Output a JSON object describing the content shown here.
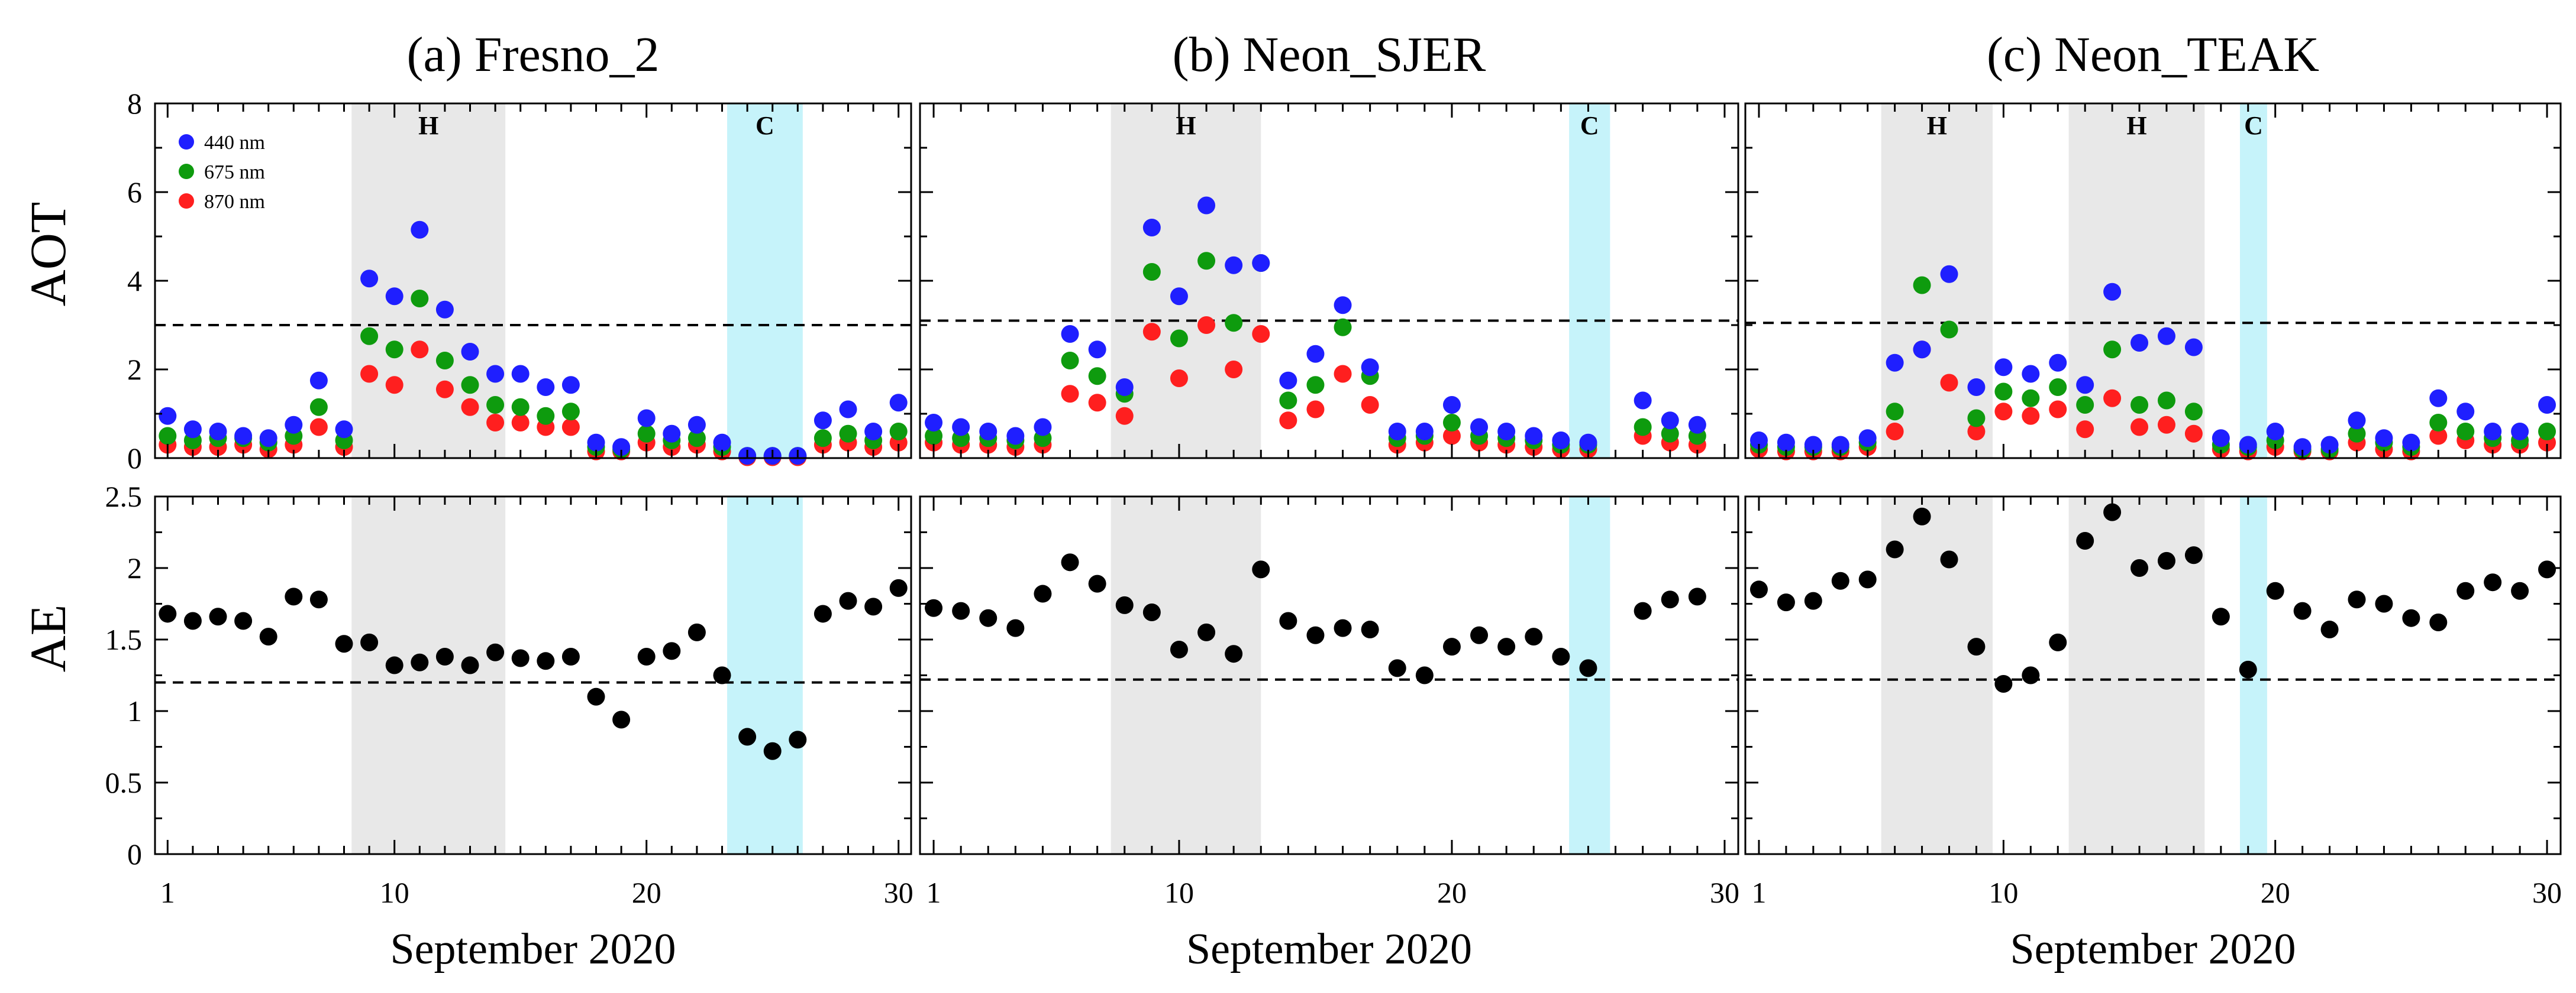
{
  "figure": {
    "ylabels": {
      "aot": "AOT",
      "ae": "AE"
    },
    "xlabel": "September 2020",
    "legend": [
      {
        "label": "440 nm",
        "color": "#1f1fff"
      },
      {
        "label": "675 nm",
        "color": "#0e9b0e"
      },
      {
        "label": "870 nm",
        "color": "#ff1f1f"
      }
    ],
    "colors": {
      "haze_band": "#e8e8e8",
      "clean_band": "#c6f3fa",
      "ae_marker": "#000000"
    },
    "aot_ylim": [
      0,
      8
    ],
    "aot_yticks": [
      0,
      2,
      4,
      6,
      8
    ],
    "ae_ylim": [
      0,
      2.5
    ],
    "ae_yticks": [
      0,
      0.5,
      1,
      1.5,
      2,
      2.5
    ],
    "ae_ytick_labels": [
      "0",
      "0.5",
      "1",
      "1.5",
      "2",
      "2.5"
    ],
    "xlim": [
      0.5,
      30.5
    ],
    "xticks": [
      1,
      10,
      20,
      30
    ]
  },
  "chart_data": [
    {
      "type": "scatter",
      "title": "(a) Fresno_2",
      "aot_threshold": 3.0,
      "ae_threshold": 1.2,
      "bands": [
        {
          "label": "H",
          "kind": "haze",
          "x0": 8.3,
          "x1": 14.4
        },
        {
          "label": "C",
          "kind": "clean",
          "x0": 23.2,
          "x1": 26.2
        }
      ],
      "days": [
        1,
        2,
        3,
        4,
        5,
        6,
        7,
        8,
        9,
        10,
        11,
        12,
        13,
        14,
        15,
        16,
        17,
        18,
        19,
        20,
        21,
        22,
        23,
        24,
        25,
        26,
        27,
        28,
        29,
        30
      ],
      "series": [
        {
          "name": "440 nm",
          "values": [
            0.95,
            0.65,
            0.6,
            0.5,
            0.45,
            0.75,
            1.75,
            0.65,
            4.05,
            3.65,
            5.15,
            3.35,
            2.4,
            1.9,
            1.9,
            1.6,
            1.65,
            0.35,
            0.25,
            0.9,
            0.55,
            0.75,
            0.35,
            0.05,
            0.05,
            0.05,
            0.85,
            1.1,
            0.6,
            1.25
          ]
        },
        {
          "name": "675 nm",
          "values": [
            0.5,
            0.4,
            0.45,
            0.45,
            0.35,
            0.5,
            1.15,
            0.4,
            2.75,
            2.45,
            3.6,
            2.2,
            1.65,
            1.2,
            1.15,
            0.95,
            1.05,
            0.25,
            0.2,
            0.55,
            0.4,
            0.45,
            0.25,
            0.05,
            0.05,
            0.05,
            0.45,
            0.55,
            0.4,
            0.6
          ]
        },
        {
          "name": "870 nm",
          "values": [
            0.3,
            0.25,
            0.25,
            0.3,
            0.2,
            0.3,
            0.7,
            0.25,
            1.9,
            1.65,
            2.45,
            1.55,
            1.15,
            0.8,
            0.8,
            0.7,
            0.7,
            0.15,
            0.15,
            0.35,
            0.25,
            0.3,
            0.15,
            0.02,
            0.02,
            0.02,
            0.3,
            0.35,
            0.25,
            0.35
          ]
        },
        {
          "name": "AE",
          "values": [
            1.68,
            1.63,
            1.66,
            1.63,
            1.52,
            1.8,
            1.78,
            1.47,
            1.48,
            1.32,
            1.34,
            1.38,
            1.32,
            1.41,
            1.37,
            1.35,
            1.38,
            1.1,
            0.94,
            1.38,
            1.42,
            1.55,
            1.25,
            0.82,
            0.72,
            0.8,
            1.68,
            1.77,
            1.73,
            1.86
          ]
        }
      ]
    },
    {
      "type": "scatter",
      "title": "(b) Neon_SJER",
      "aot_threshold": 3.1,
      "ae_threshold": 1.22,
      "bands": [
        {
          "label": "H",
          "kind": "haze",
          "x0": 7.5,
          "x1": 13.0
        },
        {
          "label": "C",
          "kind": "clean",
          "x0": 24.3,
          "x1": 25.8
        }
      ],
      "days": [
        1,
        2,
        3,
        4,
        5,
        6,
        7,
        8,
        9,
        10,
        11,
        12,
        13,
        14,
        15,
        16,
        17,
        18,
        19,
        20,
        21,
        22,
        23,
        24,
        25,
        27,
        28,
        29
      ],
      "series": [
        {
          "name": "440 nm",
          "values": [
            0.8,
            0.7,
            0.6,
            0.5,
            0.7,
            2.8,
            2.45,
            1.6,
            5.2,
            3.65,
            5.7,
            4.35,
            4.4,
            1.75,
            2.35,
            3.45,
            2.05,
            0.6,
            0.6,
            1.2,
            0.7,
            0.6,
            0.5,
            0.4,
            0.35,
            1.3,
            0.85,
            0.75
          ]
        },
        {
          "name": "675 nm",
          "values": [
            0.5,
            0.45,
            0.45,
            0.4,
            0.45,
            2.2,
            1.85,
            1.45,
            4.2,
            2.7,
            4.45,
            3.05,
            4.4,
            1.3,
            1.65,
            2.95,
            1.85,
            0.45,
            0.5,
            0.8,
            0.5,
            0.45,
            0.4,
            0.3,
            0.3,
            0.7,
            0.55,
            0.5
          ]
        },
        {
          "name": "870 nm",
          "values": [
            0.35,
            0.3,
            0.3,
            0.25,
            0.3,
            1.45,
            1.25,
            0.95,
            2.85,
            1.8,
            3.0,
            2.0,
            2.8,
            0.85,
            1.1,
            1.9,
            1.2,
            0.3,
            0.35,
            0.5,
            0.35,
            0.3,
            0.25,
            0.2,
            0.2,
            0.5,
            0.35,
            0.3
          ]
        },
        {
          "name": "AE",
          "values": [
            1.72,
            1.7,
            1.65,
            1.58,
            1.82,
            2.04,
            1.89,
            1.74,
            1.69,
            1.43,
            1.55,
            1.4,
            1.99,
            1.63,
            1.53,
            1.58,
            1.57,
            1.3,
            1.25,
            1.45,
            1.53,
            1.45,
            1.52,
            1.38,
            1.3,
            1.7,
            1.78,
            1.8
          ]
        }
      ]
    },
    {
      "type": "scatter",
      "title": "(c) Neon_TEAK",
      "aot_threshold": 3.05,
      "ae_threshold": 1.22,
      "bands": [
        {
          "label": "H",
          "kind": "haze",
          "x0": 5.5,
          "x1": 9.6
        },
        {
          "label": "H",
          "kind": "haze",
          "x0": 12.4,
          "x1": 17.4
        },
        {
          "label": "C",
          "kind": "clean",
          "x0": 18.7,
          "x1": 19.7
        }
      ],
      "days": [
        1,
        2,
        3,
        4,
        5,
        6,
        7,
        8,
        9,
        10,
        11,
        12,
        13,
        14,
        15,
        16,
        17,
        18,
        19,
        20,
        21,
        22,
        23,
        24,
        25,
        26,
        27,
        28,
        29,
        30
      ],
      "series": [
        {
          "name": "440 nm",
          "values": [
            0.4,
            0.35,
            0.3,
            0.3,
            0.45,
            2.15,
            2.45,
            4.15,
            1.6,
            2.05,
            1.9,
            2.15,
            1.65,
            3.75,
            2.6,
            2.75,
            2.5,
            0.45,
            0.3,
            0.6,
            0.25,
            0.3,
            0.85,
            0.45,
            0.35,
            1.35,
            1.05,
            0.6,
            0.6,
            1.2
          ]
        },
        {
          "name": "675 nm",
          "values": [
            0.3,
            0.25,
            0.25,
            0.25,
            0.35,
            1.05,
            3.9,
            2.9,
            0.9,
            1.5,
            1.35,
            1.6,
            1.2,
            2.45,
            1.2,
            1.3,
            1.05,
            0.3,
            0.25,
            0.4,
            0.2,
            0.2,
            0.55,
            0.35,
            0.25,
            0.8,
            0.6,
            0.45,
            0.4,
            0.6
          ]
        },
        {
          "name": "870 nm",
          "values": [
            0.2,
            0.15,
            0.15,
            0.15,
            0.25,
            0.6,
            2.45,
            1.7,
            0.6,
            1.05,
            0.95,
            1.1,
            0.65,
            1.35,
            0.7,
            0.75,
            0.55,
            0.2,
            0.15,
            0.25,
            0.15,
            0.15,
            0.35,
            0.2,
            0.15,
            0.5,
            0.4,
            0.3,
            0.3,
            0.35
          ]
        },
        {
          "name": "AE",
          "values": [
            1.85,
            1.76,
            1.77,
            1.91,
            1.92,
            2.13,
            2.36,
            2.06,
            1.45,
            1.19,
            1.25,
            1.48,
            2.19,
            2.39,
            2.0,
            2.05,
            2.09,
            1.66,
            1.29,
            1.84,
            1.7,
            1.57,
            1.78,
            1.75,
            1.65,
            1.62,
            1.84,
            1.9,
            1.84,
            1.99
          ]
        }
      ]
    }
  ]
}
